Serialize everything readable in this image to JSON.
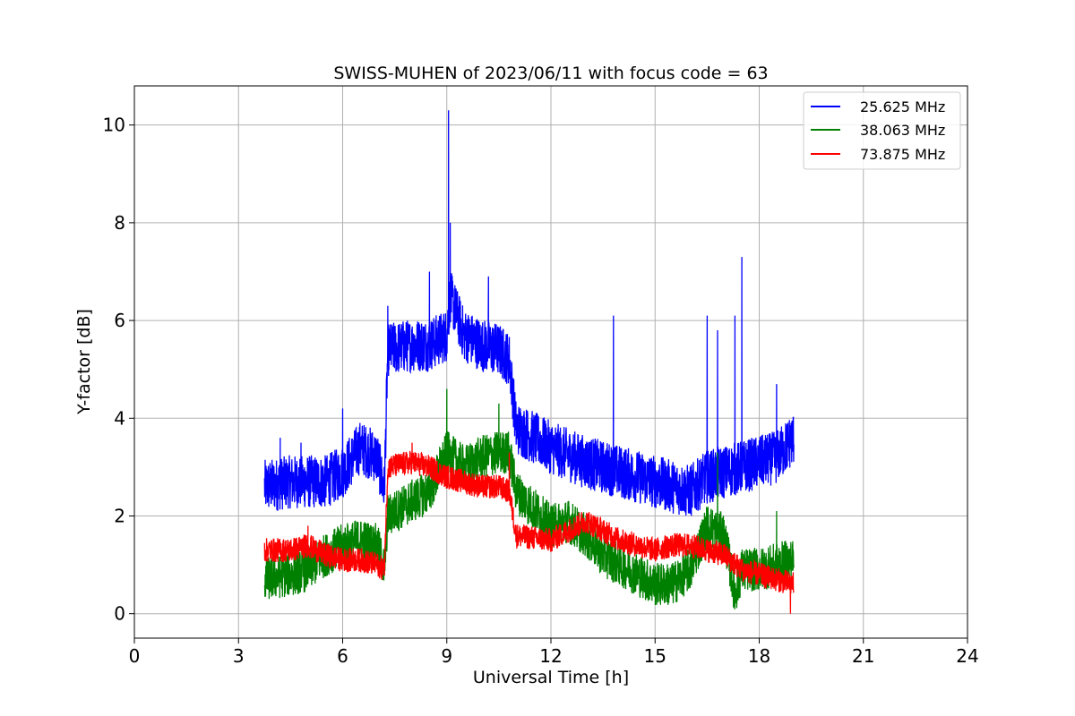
{
  "chart_data": {
    "type": "line",
    "title": "SWISS-MUHEN of 2023/06/11 with focus code = 63",
    "xlabel": "Universal Time [h]",
    "ylabel": "Y-factor [dB]",
    "xlim": [
      0,
      24
    ],
    "ylim": [
      -0.5,
      10.8
    ],
    "xticks": [
      0,
      3,
      6,
      9,
      12,
      15,
      18,
      21,
      24
    ],
    "yticks": [
      0,
      2,
      4,
      6,
      8,
      10
    ],
    "grid": true,
    "legend_position": "top-right",
    "series": [
      {
        "name": "25.625 MHz",
        "color": "#0000ff",
        "x": [
          3.75,
          4.5,
          5.5,
          6.0,
          6.5,
          7.0,
          7.2,
          7.3,
          8.0,
          8.5,
          9.0,
          9.1,
          9.5,
          10.0,
          10.5,
          10.8,
          11.0,
          12.0,
          13.0,
          14.0,
          15.0,
          16.0,
          16.5,
          17.0,
          17.5,
          18.0,
          18.5,
          19.0
        ],
        "y": [
          2.6,
          2.7,
          2.7,
          2.9,
          3.4,
          3.2,
          2.5,
          5.4,
          5.5,
          5.5,
          5.7,
          6.5,
          5.7,
          5.5,
          5.4,
          5.2,
          3.8,
          3.4,
          3.1,
          2.9,
          2.7,
          2.5,
          2.8,
          2.9,
          3.0,
          3.1,
          3.2,
          3.6
        ],
        "spikes": [
          [
            4.2,
            3.6
          ],
          [
            4.8,
            3.5
          ],
          [
            6.0,
            4.2
          ],
          [
            7.3,
            6.3
          ],
          [
            8.5,
            7.0
          ],
          [
            9.05,
            10.3
          ],
          [
            9.1,
            8.0
          ],
          [
            10.2,
            6.9
          ],
          [
            13.8,
            6.1
          ],
          [
            16.5,
            6.1
          ],
          [
            16.8,
            5.8
          ],
          [
            17.3,
            6.1
          ],
          [
            17.5,
            7.3
          ],
          [
            18.5,
            4.7
          ]
        ]
      },
      {
        "name": "38.063 MHz",
        "color": "#008000",
        "x": [
          3.75,
          4.5,
          5.0,
          5.5,
          6.0,
          6.5,
          7.0,
          7.2,
          7.3,
          8.0,
          8.5,
          9.0,
          9.5,
          10.0,
          10.5,
          10.8,
          11.0,
          12.0,
          12.5,
          13.0,
          13.5,
          14.0,
          14.5,
          15.0,
          15.5,
          16.0,
          16.5,
          17.0,
          17.3,
          17.5,
          18.0,
          18.5,
          19.0
        ],
        "y": [
          0.7,
          0.8,
          0.9,
          1.2,
          1.4,
          1.5,
          1.4,
          0.9,
          2.0,
          2.3,
          2.5,
          3.3,
          3.0,
          3.2,
          3.3,
          3.3,
          2.5,
          1.8,
          1.9,
          1.6,
          1.2,
          1.0,
          0.8,
          0.6,
          0.6,
          0.9,
          1.8,
          1.6,
          0.4,
          0.9,
          0.9,
          1.0,
          1.1
        ],
        "spikes": [
          [
            9.0,
            4.6
          ],
          [
            10.5,
            4.3
          ],
          [
            16.8,
            3.3
          ],
          [
            18.5,
            2.1
          ]
        ]
      },
      {
        "name": "73.875 MHz",
        "color": "#ff0000",
        "x": [
          3.75,
          4.5,
          5.0,
          5.5,
          6.0,
          6.5,
          7.0,
          7.2,
          7.3,
          8.0,
          8.5,
          9.0,
          9.5,
          10.0,
          10.5,
          10.8,
          11.0,
          12.0,
          13.0,
          13.5,
          14.0,
          15.0,
          15.5,
          16.0,
          16.5,
          17.0,
          17.5,
          18.0,
          18.5,
          19.0
        ],
        "y": [
          1.3,
          1.3,
          1.4,
          1.2,
          1.1,
          1.1,
          1.0,
          0.9,
          3.0,
          3.1,
          3.0,
          2.8,
          2.7,
          2.6,
          2.6,
          2.5,
          1.6,
          1.5,
          1.9,
          1.7,
          1.5,
          1.3,
          1.4,
          1.4,
          1.3,
          1.2,
          0.9,
          0.8,
          0.7,
          0.6
        ],
        "spikes": [
          [
            5.0,
            1.8
          ],
          [
            8.0,
            3.5
          ],
          [
            10.8,
            3.3
          ],
          [
            18.9,
            0.0
          ]
        ]
      }
    ]
  }
}
